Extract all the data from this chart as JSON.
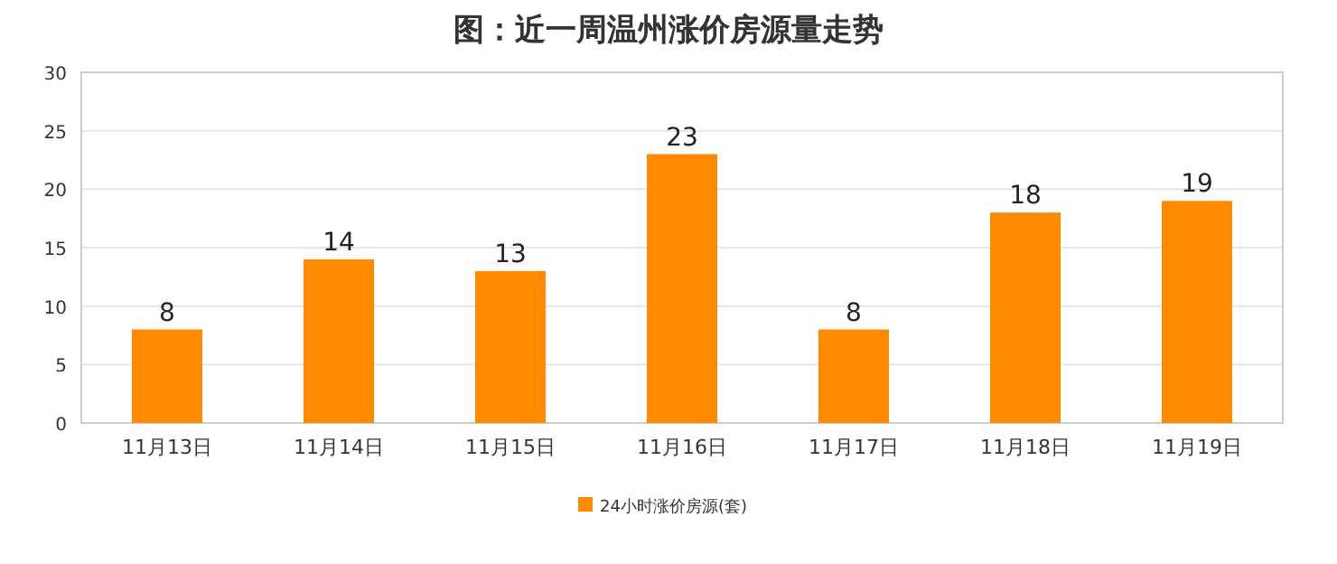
{
  "chart_data": {
    "type": "bar",
    "title": "图：近一周温州涨价房源量走势",
    "categories": [
      "11月13日",
      "11月14日",
      "11月15日",
      "11月16日",
      "11月17日",
      "11月18日",
      "11月19日"
    ],
    "series": [
      {
        "name": "24小时涨价房源(套)",
        "color": "#ff8a00",
        "values": [
          8,
          14,
          13,
          23,
          8,
          18,
          19
        ]
      }
    ],
    "ylim": [
      0,
      30
    ],
    "yticks": [
      0,
      5,
      10,
      15,
      20,
      25,
      30
    ],
    "grid": "y",
    "legend": "bottom",
    "data_labels": true
  }
}
